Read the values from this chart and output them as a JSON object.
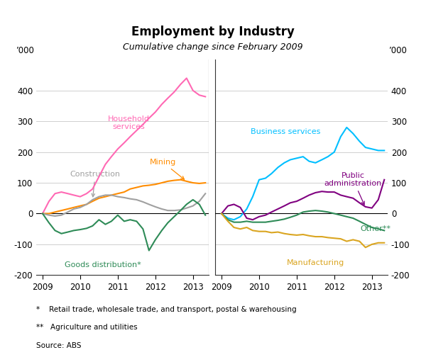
{
  "title": "Employment by Industry",
  "subtitle": "Cumulative change since February 2009",
  "ylabel": "’000",
  "ylim": [
    -200,
    500
  ],
  "yticks": [
    -200,
    -100,
    0,
    100,
    200,
    300,
    400
  ],
  "footnote1": "*    Retail trade, wholesale trade, and transport, postal & warehousing",
  "footnote2": "**   Agriculture and utilities",
  "footnote3": "Source: ABS",
  "left_panel": {
    "x_labels": [
      "2009",
      "2010",
      "2011",
      "2012",
      "2013"
    ],
    "household_services": {
      "color": "#FF69B4",
      "label": "Household\nservices",
      "x": [
        2009.0,
        2009.17,
        2009.33,
        2009.5,
        2009.67,
        2009.83,
        2010.0,
        2010.17,
        2010.33,
        2010.5,
        2010.67,
        2010.83,
        2011.0,
        2011.17,
        2011.33,
        2011.5,
        2011.67,
        2011.83,
        2012.0,
        2012.17,
        2012.33,
        2012.5,
        2012.67,
        2012.83,
        2013.0,
        2013.17,
        2013.33
      ],
      "y": [
        0,
        40,
        65,
        70,
        65,
        60,
        55,
        65,
        80,
        120,
        160,
        185,
        210,
        230,
        250,
        270,
        290,
        310,
        330,
        355,
        375,
        395,
        420,
        440,
        400,
        385,
        380
      ]
    },
    "mining": {
      "color": "#FF8C00",
      "label": "Mining",
      "x": [
        2009.0,
        2009.17,
        2009.33,
        2009.5,
        2009.67,
        2009.83,
        2010.0,
        2010.17,
        2010.33,
        2010.5,
        2010.67,
        2010.83,
        2011.0,
        2011.17,
        2011.33,
        2011.5,
        2011.67,
        2011.83,
        2012.0,
        2012.17,
        2012.33,
        2012.5,
        2012.67,
        2012.83,
        2013.0,
        2013.17,
        2013.33
      ],
      "y": [
        0,
        0,
        5,
        10,
        15,
        20,
        25,
        30,
        40,
        50,
        55,
        60,
        65,
        70,
        80,
        85,
        90,
        92,
        95,
        100,
        105,
        108,
        110,
        105,
        100,
        98,
        100
      ]
    },
    "construction": {
      "color": "#A0A0A0",
      "label": "Construction",
      "x": [
        2009.0,
        2009.17,
        2009.33,
        2009.5,
        2009.67,
        2009.83,
        2010.0,
        2010.17,
        2010.33,
        2010.5,
        2010.67,
        2010.83,
        2011.0,
        2011.17,
        2011.33,
        2011.5,
        2011.67,
        2011.83,
        2012.0,
        2012.17,
        2012.33,
        2012.5,
        2012.67,
        2012.83,
        2013.0,
        2013.17,
        2013.33
      ],
      "y": [
        0,
        -5,
        -8,
        -5,
        5,
        15,
        20,
        30,
        45,
        55,
        60,
        60,
        55,
        52,
        48,
        45,
        38,
        30,
        22,
        15,
        10,
        10,
        12,
        18,
        25,
        40,
        65
      ]
    },
    "goods_distribution": {
      "color": "#2E8B57",
      "label": "Goods distribution*",
      "x": [
        2009.0,
        2009.17,
        2009.33,
        2009.5,
        2009.67,
        2009.83,
        2010.0,
        2010.17,
        2010.33,
        2010.5,
        2010.67,
        2010.83,
        2011.0,
        2011.17,
        2011.33,
        2011.5,
        2011.67,
        2011.83,
        2012.0,
        2012.17,
        2012.33,
        2012.5,
        2012.67,
        2012.83,
        2013.0,
        2013.17,
        2013.33
      ],
      "y": [
        0,
        -30,
        -55,
        -65,
        -60,
        -55,
        -52,
        -48,
        -40,
        -20,
        -35,
        -25,
        -5,
        -25,
        -20,
        -25,
        -50,
        -120,
        -85,
        -55,
        -30,
        -10,
        10,
        30,
        45,
        30,
        -5
      ]
    }
  },
  "right_panel": {
    "x_labels": [
      "2009",
      "2010",
      "2011",
      "2012",
      "2013"
    ],
    "business_services": {
      "color": "#00BFFF",
      "label": "Business services",
      "x": [
        2009.0,
        2009.17,
        2009.33,
        2009.5,
        2009.67,
        2009.83,
        2010.0,
        2010.17,
        2010.33,
        2010.5,
        2010.67,
        2010.83,
        2011.0,
        2011.17,
        2011.33,
        2011.5,
        2011.67,
        2011.83,
        2012.0,
        2012.17,
        2012.33,
        2012.5,
        2012.67,
        2012.83,
        2013.0,
        2013.17,
        2013.33
      ],
      "y": [
        0,
        -15,
        -20,
        -10,
        15,
        55,
        110,
        115,
        130,
        150,
        165,
        175,
        180,
        185,
        170,
        165,
        175,
        185,
        200,
        250,
        280,
        260,
        235,
        215,
        210,
        205,
        205
      ]
    },
    "public_admin": {
      "color": "#800080",
      "label": "Public\nadministration",
      "x": [
        2009.0,
        2009.17,
        2009.33,
        2009.5,
        2009.67,
        2009.83,
        2010.0,
        2010.17,
        2010.33,
        2010.5,
        2010.67,
        2010.83,
        2011.0,
        2011.17,
        2011.33,
        2011.5,
        2011.67,
        2011.83,
        2012.0,
        2012.17,
        2012.33,
        2012.5,
        2012.67,
        2012.83,
        2013.0,
        2013.17,
        2013.33
      ],
      "y": [
        0,
        25,
        30,
        20,
        -15,
        -20,
        -10,
        -5,
        5,
        15,
        25,
        35,
        40,
        50,
        60,
        68,
        72,
        70,
        70,
        60,
        55,
        50,
        35,
        22,
        18,
        45,
        110
      ]
    },
    "other": {
      "color": "#2E8B57",
      "label": "Other**",
      "x": [
        2009.0,
        2009.17,
        2009.33,
        2009.5,
        2009.67,
        2009.83,
        2010.0,
        2010.17,
        2010.33,
        2010.5,
        2010.67,
        2010.83,
        2011.0,
        2011.17,
        2011.33,
        2011.5,
        2011.67,
        2011.83,
        2012.0,
        2012.17,
        2012.33,
        2012.5,
        2012.67,
        2012.83,
        2013.0,
        2013.17,
        2013.33
      ],
      "y": [
        0,
        -20,
        -28,
        -28,
        -25,
        -28,
        -28,
        -28,
        -25,
        -22,
        -18,
        -12,
        -5,
        5,
        8,
        10,
        8,
        5,
        0,
        -5,
        -10,
        -15,
        -25,
        -35,
        -45,
        -50,
        -55
      ]
    },
    "manufacturing": {
      "color": "#DAA520",
      "label": "Manufacturing",
      "x": [
        2009.0,
        2009.17,
        2009.33,
        2009.5,
        2009.67,
        2009.83,
        2010.0,
        2010.17,
        2010.33,
        2010.5,
        2010.67,
        2010.83,
        2011.0,
        2011.17,
        2011.33,
        2011.5,
        2011.67,
        2011.83,
        2012.0,
        2012.17,
        2012.33,
        2012.5,
        2012.67,
        2012.83,
        2013.0,
        2013.17,
        2013.33
      ],
      "y": [
        0,
        -25,
        -45,
        -50,
        -45,
        -55,
        -58,
        -58,
        -62,
        -60,
        -65,
        -68,
        -70,
        -68,
        -72,
        -75,
        -75,
        -78,
        -80,
        -82,
        -90,
        -85,
        -90,
        -110,
        -100,
        -95,
        -95
      ]
    }
  }
}
